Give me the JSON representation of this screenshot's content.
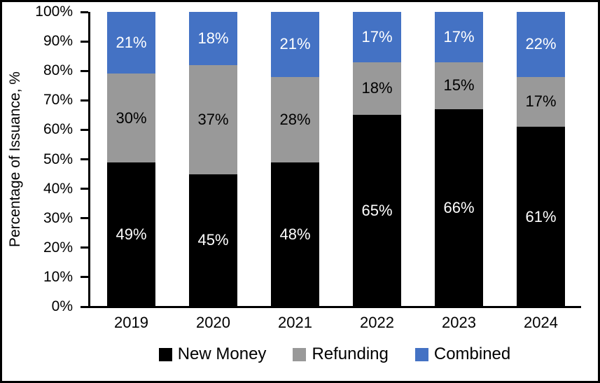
{
  "chart_data": {
    "type": "bar",
    "stacked": true,
    "title": "",
    "xlabel": "",
    "ylabel": "Percentage of Issuance, %",
    "ylim": [
      0,
      100
    ],
    "ytick_step": 10,
    "ytick_labels": [
      "100%",
      "90%",
      "80%",
      "70%",
      "60%",
      "50%",
      "40%",
      "30%",
      "20%",
      "10%",
      "0%"
    ],
    "grid": false,
    "categories": [
      "2019",
      "2020",
      "2021",
      "2022",
      "2023",
      "2024"
    ],
    "series": [
      {
        "name": "New Money",
        "color": "#000000",
        "label_color": "#FFFFFF",
        "values": [
          49,
          45,
          48,
          65,
          66,
          61
        ],
        "labels": [
          "49%",
          "45%",
          "48%",
          "65%",
          "66%",
          "61%"
        ],
        "draw_heights": [
          49,
          45,
          49,
          65,
          67,
          61
        ]
      },
      {
        "name": "Refunding",
        "color": "#999999",
        "label_color": "#000000",
        "values": [
          30,
          37,
          28,
          18,
          15,
          17
        ],
        "labels": [
          "30%",
          "37%",
          "28%",
          "18%",
          "15%",
          "17%"
        ],
        "draw_heights": [
          30,
          37,
          29,
          18,
          16,
          17
        ]
      },
      {
        "name": "Combined",
        "color": "#4472C4",
        "label_color": "#FFFFFF",
        "values": [
          21,
          18,
          21,
          17,
          17,
          22
        ],
        "labels": [
          "21%",
          "18%",
          "21%",
          "17%",
          "17%",
          "22%"
        ],
        "draw_heights": [
          21,
          18,
          22,
          17,
          17,
          22
        ]
      }
    ],
    "legend": {
      "position": "bottom",
      "entries": [
        "New Money",
        "Refunding",
        "Combined"
      ]
    }
  }
}
